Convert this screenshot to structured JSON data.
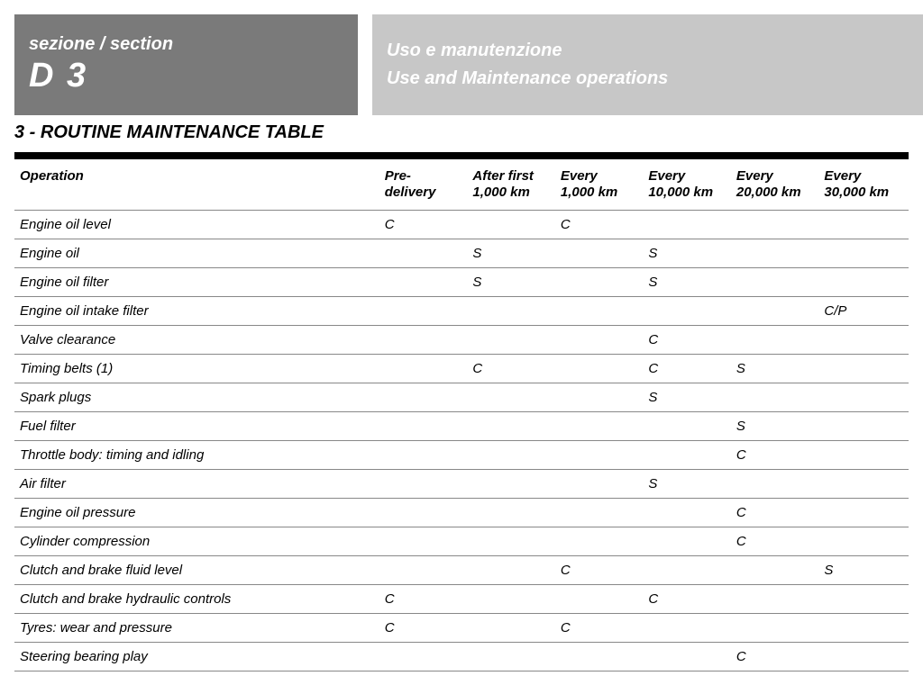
{
  "header": {
    "left_label": "sezione / section",
    "left_code": "D 3",
    "right_line1": "Uso e manutenzione",
    "right_line2": "Use and Maintenance operations"
  },
  "title": "3 - ROUTINE MAINTENANCE TABLE",
  "table": {
    "columns": [
      "Operation",
      "Pre-\ndelivery",
      "After first\n1,000 km",
      "Every\n1,000 km",
      "Every\n10,000 km",
      "Every\n20,000 km",
      "Every\n30,000 km"
    ],
    "rows": [
      {
        "op": "Engine oil level",
        "v": [
          "C",
          "",
          "C",
          "",
          "",
          ""
        ]
      },
      {
        "op": "Engine oil",
        "v": [
          "",
          "S",
          "",
          "S",
          "",
          ""
        ]
      },
      {
        "op": "Engine oil filter",
        "v": [
          "",
          "S",
          "",
          "S",
          "",
          ""
        ]
      },
      {
        "op": "Engine oil intake filter",
        "v": [
          "",
          "",
          "",
          "",
          "",
          "C/P"
        ]
      },
      {
        "op": "Valve clearance",
        "v": [
          "",
          "",
          "",
          "C",
          "",
          ""
        ]
      },
      {
        "op": "Timing belts (1)",
        "v": [
          "",
          "C",
          "",
          "C",
          "S",
          ""
        ]
      },
      {
        "op": "Spark plugs",
        "v": [
          "",
          "",
          "",
          "S",
          "",
          ""
        ]
      },
      {
        "op": "Fuel filter",
        "v": [
          "",
          "",
          "",
          "",
          "S",
          ""
        ]
      },
      {
        "op": "Throttle body: timing and idling",
        "v": [
          "",
          "",
          "",
          "",
          "C",
          ""
        ]
      },
      {
        "op": "Air filter",
        "v": [
          "",
          "",
          "",
          "S",
          "",
          ""
        ]
      },
      {
        "op": "Engine oil pressure",
        "v": [
          "",
          "",
          "",
          "",
          "C",
          ""
        ]
      },
      {
        "op": "Cylinder compression",
        "v": [
          "",
          "",
          "",
          "",
          "C",
          ""
        ]
      },
      {
        "op": "Clutch and brake fluid level",
        "v": [
          "",
          "",
          "C",
          "",
          "",
          "S"
        ]
      },
      {
        "op": "Clutch and brake hydraulic controls",
        "v": [
          "C",
          "",
          "",
          "C",
          "",
          ""
        ]
      },
      {
        "op": "Tyres: wear and pressure",
        "v": [
          "C",
          "",
          "C",
          "",
          "",
          ""
        ]
      },
      {
        "op": "Steering bearing play",
        "v": [
          "",
          "",
          "",
          "",
          "C",
          ""
        ]
      }
    ]
  },
  "colors": {
    "header_left_bg": "#7a7a7a",
    "header_right_bg": "#c7c7c7",
    "header_text": "#ffffff",
    "text": "#000000",
    "row_border": "#888888",
    "black_bar": "#000000",
    "page_bg": "#ffffff"
  }
}
